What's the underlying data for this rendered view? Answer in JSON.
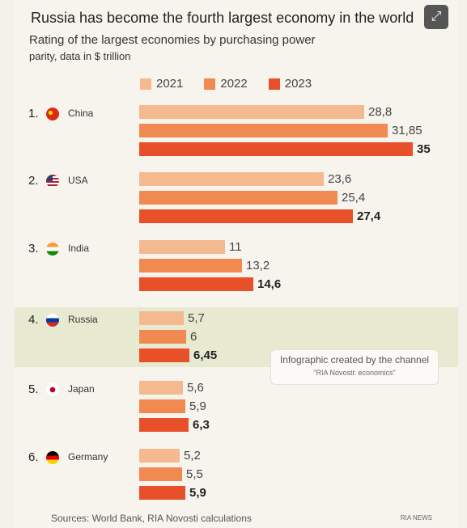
{
  "header": {
    "title": "Russia has become the fourth largest economy in the world",
    "subtitle_line1": "Rating of the largest economies by purchasing power",
    "subtitle_line2": "parity, data in $ trillion"
  },
  "colors": {
    "2021": "#f5b98f",
    "2022": "#f08a50",
    "2023": "#e8502a",
    "highlight": "#e7ead1"
  },
  "chart_data": {
    "type": "bar",
    "orientation": "horizontal",
    "title": "Russia has become the fourth largest economy in the world",
    "subtitle": "Rating of the largest economies by purchasing power parity, data in $ trillion",
    "categories": [
      "China",
      "USA",
      "India",
      "Russia",
      "Japan",
      "Germany"
    ],
    "ranks": [
      "1.",
      "2.",
      "3.",
      "4.",
      "5.",
      "6."
    ],
    "series": [
      {
        "name": "2021",
        "values": [
          28.8,
          23.6,
          11,
          5.7,
          5.6,
          5.2
        ],
        "labels": [
          "28,8",
          "23,6",
          "11",
          "5,7",
          "5,6",
          "5,2"
        ]
      },
      {
        "name": "2022",
        "values": [
          31.85,
          25.4,
          13.2,
          6,
          5.9,
          5.5
        ],
        "labels": [
          "31,85",
          "25,4",
          "13,2",
          "6",
          "5,9",
          "5,5"
        ]
      },
      {
        "name": "2023",
        "values": [
          35,
          27.4,
          14.6,
          6.45,
          6.3,
          5.9
        ],
        "labels": [
          "35",
          "27,4",
          "14,6",
          "6,45",
          "6,3",
          "5,9"
        ]
      }
    ],
    "highlighted_category": "Russia",
    "grid": false,
    "legend": "top"
  },
  "note": {
    "line1": "Infographic created by the channel",
    "line2": "\"RIA Novosti: economics\""
  },
  "footer": {
    "sources": "Sources: World Bank, RIA Novosti calculations",
    "brand": "RIA NEWS"
  },
  "icons": {
    "expand": "expand-icon"
  }
}
